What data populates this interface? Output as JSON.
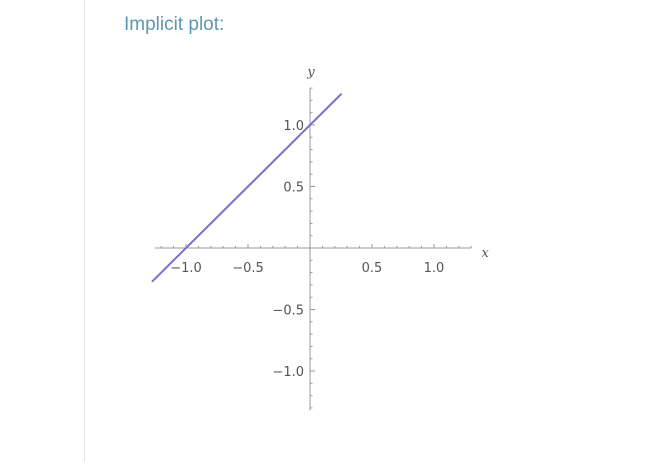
{
  "pod": {
    "title": "Implicit plot:"
  },
  "chart_data": {
    "type": "line",
    "title": "",
    "xlabel": "x",
    "ylabel": "y",
    "xlim": [
      -1.25,
      1.3
    ],
    "ylim": [
      -1.32,
      1.3
    ],
    "x_ticks": [
      {
        "value": -1.0,
        "label": "−1.0"
      },
      {
        "value": -0.5,
        "label": "−0.5"
      },
      {
        "value": 0.5,
        "label": "0.5"
      },
      {
        "value": 1.0,
        "label": "1.0"
      }
    ],
    "y_ticks": [
      {
        "value": 1.0,
        "label": "1.0"
      },
      {
        "value": 0.5,
        "label": "0.5"
      },
      {
        "value": -0.5,
        "label": "−0.5"
      },
      {
        "value": -1.0,
        "label": "−1.0"
      }
    ],
    "series": [
      {
        "color": "#7b6fcf",
        "x": [
          -1.27,
          0.25
        ],
        "y": [
          -0.27,
          1.25
        ]
      }
    ],
    "grid": false,
    "legend": "none"
  }
}
